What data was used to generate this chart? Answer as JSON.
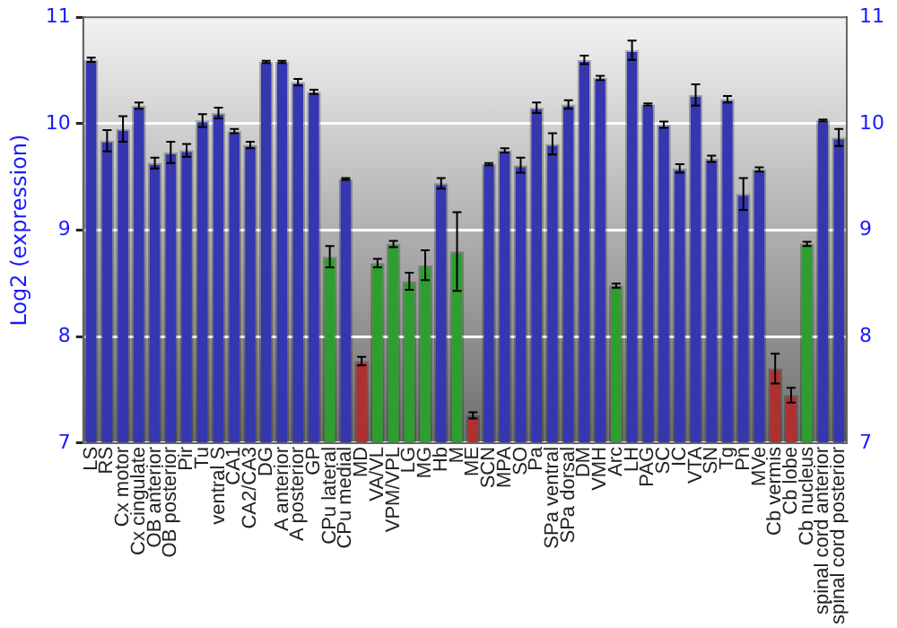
{
  "chart_data": {
    "type": "bar",
    "ylabel": "Log2 (expression)",
    "categories": [
      "LS",
      "RS",
      "Cx motor",
      "Cx cingulate",
      "OB anterior",
      "OB posterior",
      "Pir",
      "Tu",
      "ventral S",
      "CA1",
      "CA2/CA3",
      "DG",
      "A anterior",
      "A posterior",
      "GP",
      "CPu lateral",
      "CPu medial",
      "MD",
      "VA/VL",
      "VPM/VPL",
      "LG",
      "MG",
      "Hb",
      "M",
      "ME",
      "SCN",
      "MPA",
      "SO",
      "Pa",
      "SPa ventral",
      "SPa dorsal",
      "DM",
      "VMH",
      "Arc",
      "LH",
      "PAG",
      "SC",
      "IC",
      "VTA",
      "SN",
      "Tg",
      "Pn",
      "MVe",
      "Cb vermis",
      "Cb lobe",
      "Cb nucleus",
      "spinal cord anterior",
      "spinal cord posterior"
    ],
    "values": [
      10.6,
      9.84,
      9.95,
      10.17,
      9.63,
      9.73,
      9.75,
      10.03,
      10.1,
      9.93,
      9.8,
      10.58,
      10.58,
      10.39,
      10.3,
      8.75,
      9.48,
      7.77,
      8.69,
      8.87,
      8.52,
      8.67,
      9.44,
      8.8,
      7.26,
      9.62,
      9.75,
      9.61,
      10.15,
      9.81,
      10.18,
      10.6,
      10.43,
      8.48,
      10.69,
      10.18,
      9.99,
      9.58,
      10.27,
      9.67,
      10.23,
      9.34,
      9.57,
      7.7,
      7.45,
      8.87,
      10.03,
      9.87
    ],
    "errors": [
      0.02,
      0.1,
      0.12,
      0.03,
      0.05,
      0.1,
      0.06,
      0.06,
      0.05,
      0.02,
      0.03,
      0.01,
      0.01,
      0.03,
      0.02,
      0.1,
      0.01,
      0.04,
      0.04,
      0.03,
      0.08,
      0.14,
      0.05,
      0.37,
      0.03,
      0.01,
      0.02,
      0.07,
      0.05,
      0.1,
      0.04,
      0.04,
      0.02,
      0.02,
      0.09,
      0.01,
      0.03,
      0.04,
      0.1,
      0.03,
      0.03,
      0.15,
      0.02,
      0.14,
      0.07,
      0.02,
      0.01,
      0.08
    ],
    "colors": [
      "#3636b0",
      "#3636b0",
      "#3636b0",
      "#3636b0",
      "#3636b0",
      "#3636b0",
      "#3636b0",
      "#3636b0",
      "#3636b0",
      "#3636b0",
      "#3636b0",
      "#3636b0",
      "#3636b0",
      "#3636b0",
      "#3636b0",
      "#2e9e2e",
      "#3636b0",
      "#b03030",
      "#2e9e2e",
      "#2e9e2e",
      "#2e9e2e",
      "#2e9e2e",
      "#3636b0",
      "#2e9e2e",
      "#b03030",
      "#3636b0",
      "#3636b0",
      "#3636b0",
      "#3636b0",
      "#3636b0",
      "#3636b0",
      "#3636b0",
      "#3636b0",
      "#2e9e2e",
      "#3636b0",
      "#3636b0",
      "#3636b0",
      "#3636b0",
      "#3636b0",
      "#3636b0",
      "#3636b0",
      "#3636b0",
      "#3636b0",
      "#b03030",
      "#b03030",
      "#2e9e2e",
      "#3636b0",
      "#3636b0"
    ],
    "ylim": [
      7,
      11
    ],
    "yticks": [
      7,
      8,
      9,
      10,
      11
    ],
    "y2lim": [
      7,
      11
    ],
    "y2ticks": [
      7,
      8,
      9,
      10,
      11
    ],
    "grid": "y"
  }
}
